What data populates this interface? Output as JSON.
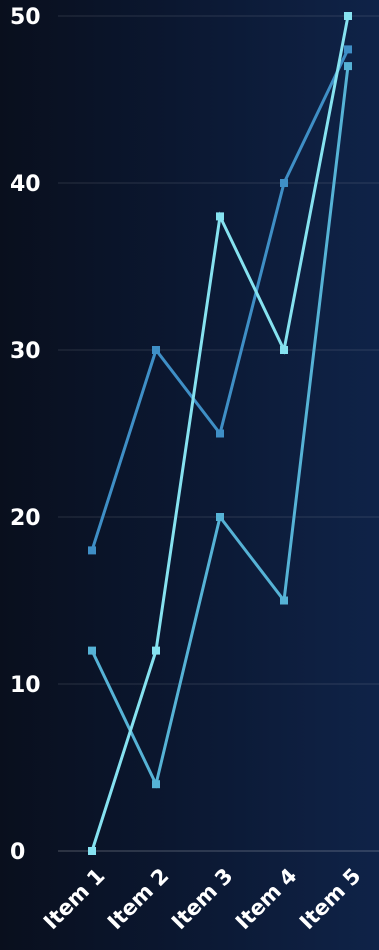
{
  "chart_data": {
    "type": "line",
    "categories": [
      "Item 1",
      "Item 2",
      "Item 3",
      "Item 4",
      "Item 5"
    ],
    "series": [
      {
        "values": [
          18,
          30,
          25,
          40,
          48
        ],
        "color": "#3f8fc6"
      },
      {
        "values": [
          12,
          4,
          20,
          15,
          47
        ],
        "color": "#56b3d6"
      },
      {
        "values": [
          0,
          12,
          38,
          30,
          50
        ],
        "color": "#86e2f0"
      }
    ],
    "ylim": [
      0,
      50
    ],
    "yticks": [
      0,
      10,
      20,
      30,
      40,
      50
    ],
    "grid": true,
    "legend": "none",
    "title": "",
    "xlabel": "",
    "ylabel": ""
  }
}
